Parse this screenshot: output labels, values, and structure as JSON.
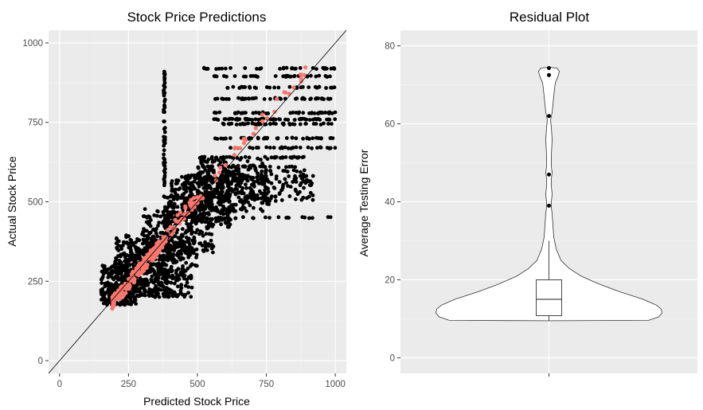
{
  "chart_data": [
    {
      "type": "scatter",
      "title": "Stock Price Predictions",
      "xlabel": "Predicted Stock Price",
      "ylabel": "Actual Stock Price",
      "xlim": [
        -40,
        1040
      ],
      "ylim": [
        -40,
        1040
      ],
      "x_ticks": [
        0,
        250,
        500,
        750,
        1000
      ],
      "y_ticks": [
        0,
        250,
        500,
        750,
        1000
      ],
      "grid": true,
      "reference_line": {
        "slope": 1,
        "intercept": 0
      },
      "colors": {
        "panel": "#ebebeb",
        "points": "#000000",
        "highlight": "#f8766d",
        "line": "#000000"
      },
      "series": [
        {
          "clusters": [
            {
              "x": [
                150,
                280
              ],
              "y": [
                175,
                300
              ],
              "n": 260
            },
            {
              "x": [
                200,
                400
              ],
              "y": [
                200,
                400
              ],
              "n": 320
            },
            {
              "x": [
                250,
                480
              ],
              "y": [
                200,
                380
              ],
              "n": 240
            },
            {
              "x": [
                300,
                500
              ],
              "y": [
                280,
                480
              ],
              "n": 200
            },
            {
              "x": [
                380,
                560
              ],
              "y": [
                340,
                520
              ],
              "n": 180
            },
            {
              "x": [
                400,
                620
              ],
              "y": [
                420,
                580
              ],
              "n": 220
            },
            {
              "x": [
                450,
                760
              ],
              "y": [
                470,
                590
              ],
              "n": 260
            },
            {
              "x": [
                560,
                920
              ],
              "y": [
                500,
                600
              ],
              "n": 160
            },
            {
              "x": [
                500,
                760
              ],
              "y": [
                560,
                640
              ],
              "n": 100
            }
          ],
          "levels": [
            {
              "y": 920,
              "x": [
                520,
                1000
              ],
              "n": 35
            },
            {
              "y": 895,
              "x": [
                560,
                1000
              ],
              "n": 35
            },
            {
              "y": 860,
              "x": [
                600,
                1000
              ],
              "n": 30
            },
            {
              "y": 825,
              "x": [
                560,
                1000
              ],
              "n": 45
            },
            {
              "y": 780,
              "x": [
                560,
                1000
              ],
              "n": 45
            },
            {
              "y": 760,
              "x": [
                560,
                1000
              ],
              "n": 55
            },
            {
              "y": 745,
              "x": [
                580,
                1000
              ],
              "n": 45
            },
            {
              "y": 700,
              "x": [
                560,
                1000
              ],
              "n": 40
            },
            {
              "y": 670,
              "x": [
                600,
                1000
              ],
              "n": 30
            },
            {
              "y": 640,
              "x": [
                500,
                900
              ],
              "n": 40
            },
            {
              "y": 610,
              "x": [
                500,
                880
              ],
              "n": 35
            },
            {
              "y": 450,
              "x": [
                400,
                990
              ],
              "n": 30
            }
          ],
          "vertical_column": {
            "x": 380,
            "y": [
              430,
              920
            ],
            "n": 70
          }
        },
        {
          "clusters": [
            {
              "x": [
                190,
                380
              ],
              "y": [
                180,
                380
              ],
              "n": 170
            },
            {
              "x": [
                380,
                520
              ],
              "y": [
                390,
                530
              ],
              "n": 45
            },
            {
              "x": [
                540,
                900
              ],
              "y": [
                560,
                920
              ],
              "n": 28
            }
          ]
        }
      ]
    },
    {
      "type": "violin",
      "title": "Residual Plot",
      "xlabel": "",
      "ylabel": "Average Testing Error",
      "ylim": [
        -4,
        84
      ],
      "y_ticks": [
        0,
        20,
        40,
        60,
        80
      ],
      "grid": true,
      "box": {
        "min": 9.5,
        "q1": 10.8,
        "median": 15,
        "q3": 20,
        "whisker_high": 30
      },
      "outliers": [
        72.5,
        74.3,
        62,
        47,
        39
      ],
      "violin_range": [
        9.5,
        74.5
      ],
      "colors": {
        "panel": "#ebebeb",
        "fill": "#ffffff",
        "stroke": "#333333",
        "outliers": "#000000"
      }
    }
  ]
}
